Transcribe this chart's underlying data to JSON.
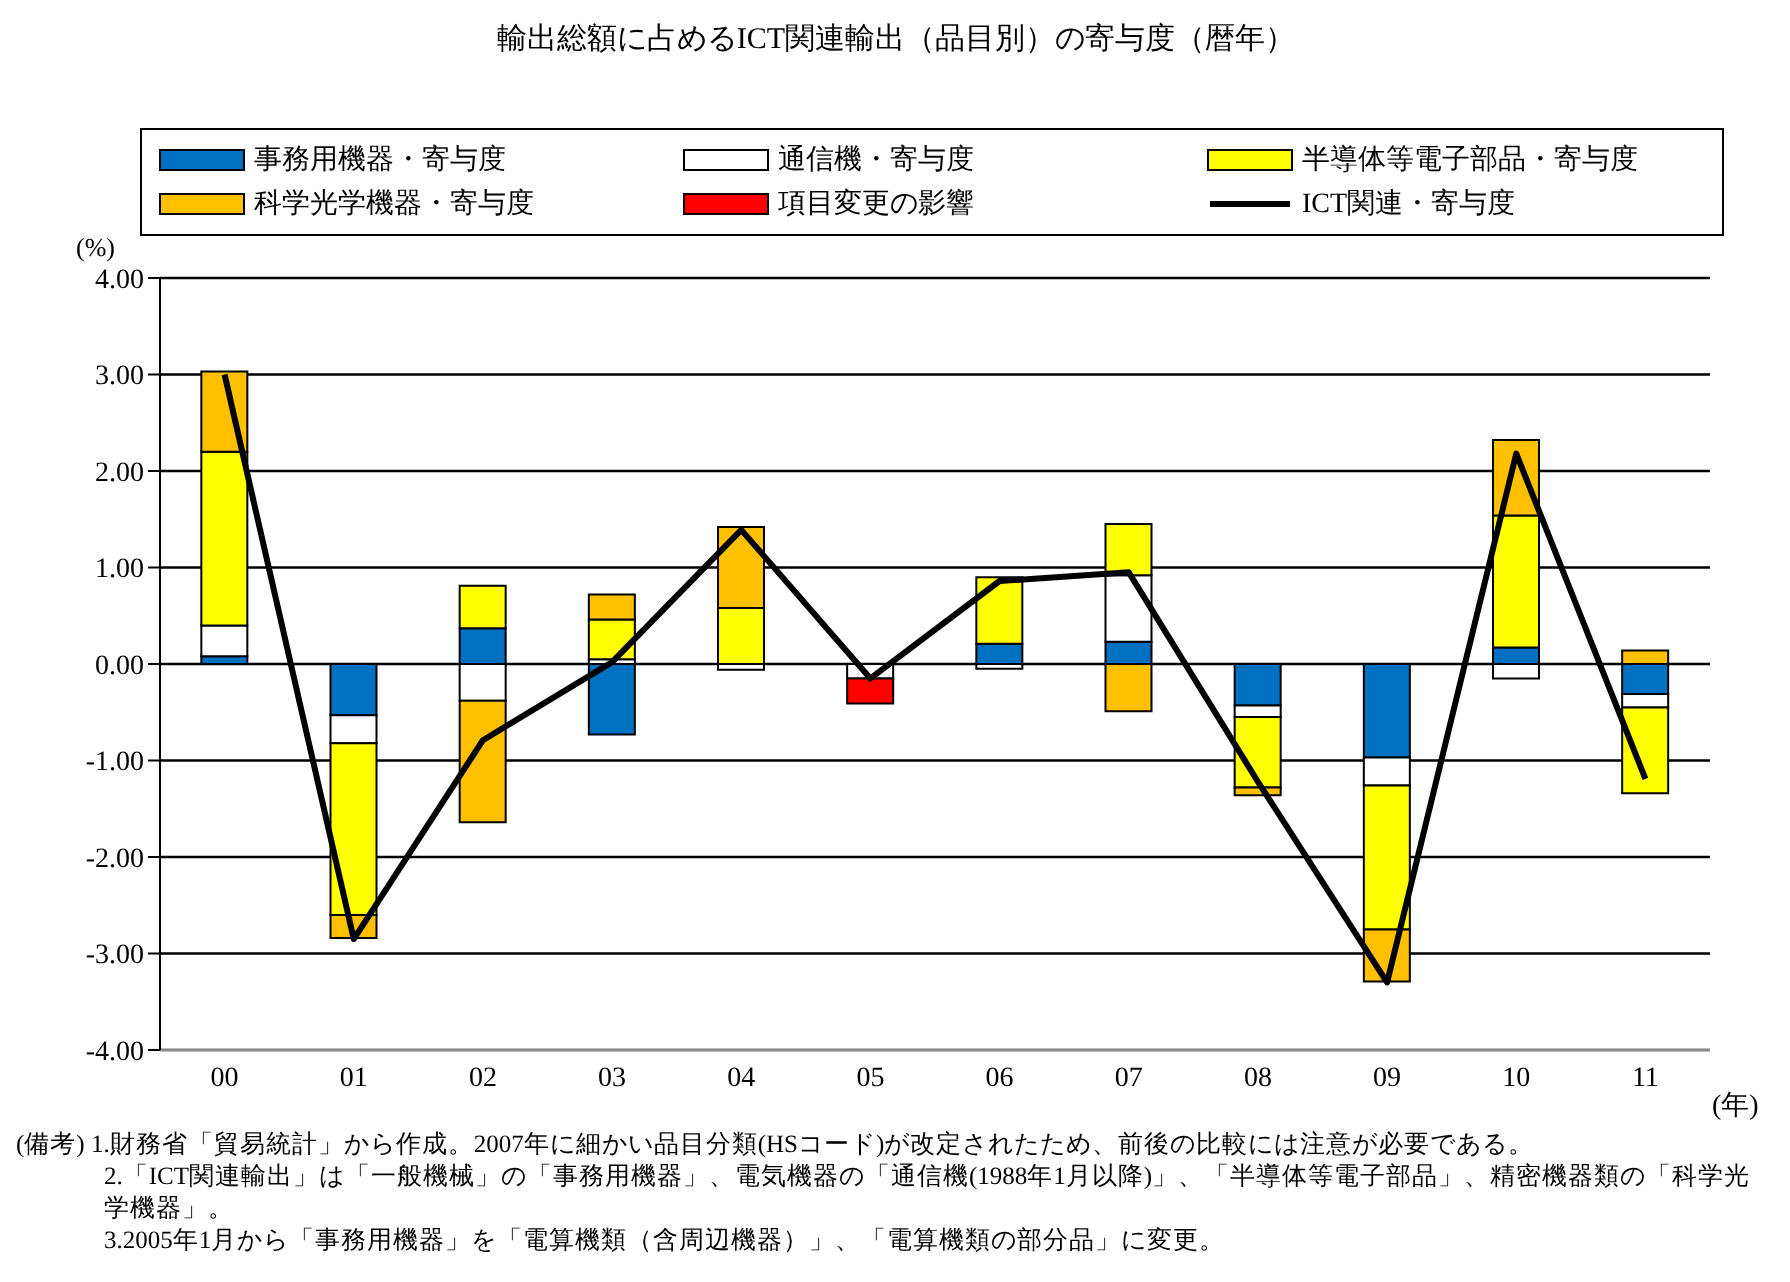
{
  "chart_data": {
    "type": "bar",
    "stacked": true,
    "title": "輸出総額に占めるICT関連輸出（品目別）の寄与度（暦年）",
    "ylabel": "(%)",
    "xlabel": "(年)",
    "categories": [
      "00",
      "01",
      "02",
      "03",
      "04",
      "05",
      "06",
      "07",
      "08",
      "09",
      "10",
      "11"
    ],
    "series": [
      {
        "name": "事務用機器・寄与度",
        "color": "#0070c0",
        "values": [
          0.08,
          -0.53,
          0.37,
          -0.73,
          null,
          null,
          0.21,
          0.23,
          -0.43,
          -0.97,
          0.17,
          -0.31
        ]
      },
      {
        "name": "通信機・寄与度",
        "color": "#ffffff",
        "values": [
          0.32,
          -0.29,
          -0.38,
          0.05,
          -0.06,
          -0.15,
          -0.05,
          0.69,
          -0.12,
          -0.29,
          -0.15,
          -0.14
        ]
      },
      {
        "name": "半導体等電子部品・寄与度",
        "color": "#ffff00",
        "values": [
          1.8,
          -1.78,
          0.44,
          0.41,
          0.58,
          null,
          0.69,
          0.53,
          -0.73,
          -1.49,
          1.37,
          -0.89
        ]
      },
      {
        "name": "科学光学機器・寄与度",
        "color": "#ffc000",
        "values": [
          0.83,
          -0.24,
          -1.26,
          0.26,
          0.84,
          null,
          null,
          -0.49,
          -0.08,
          -0.54,
          0.78,
          0.14
        ]
      },
      {
        "name": "項目変更の影響",
        "color": "#ff0000",
        "values": [
          null,
          null,
          null,
          null,
          null,
          -0.26,
          null,
          null,
          null,
          null,
          null,
          null
        ]
      },
      {
        "name": "ICT関連・寄与度",
        "type": "line",
        "color": "#000000",
        "values": [
          3.0,
          -2.85,
          -0.79,
          0.02,
          1.39,
          -0.15,
          0.86,
          0.95,
          -1.22,
          -3.3,
          2.18,
          -1.19
        ]
      }
    ],
    "ylim": [
      -4,
      4
    ],
    "yticks": [
      {
        "value": -4,
        "label": "-4.00"
      },
      {
        "value": -3,
        "label": "-3.00"
      },
      {
        "value": -2,
        "label": "-2.00"
      },
      {
        "value": -1,
        "label": "-1.00"
      },
      {
        "value": 0,
        "label": "0.00"
      },
      {
        "value": 1,
        "label": "1.00"
      },
      {
        "value": 2,
        "label": "2.00"
      },
      {
        "value": 3,
        "label": "3.00"
      },
      {
        "value": 4,
        "label": "4.00"
      }
    ],
    "grid": "y",
    "legend": "top",
    "marker": "none",
    "line_style": "solid",
    "annotations": [
      "(備考) 1.財務省「貿易統計」から作成。2007年に細かい品目分類(HSコード)が改定されたため、前後の比較には注意が必要である。",
      "2.「ICT関連輸出」は「一般機械」の「事務用機器」、電気機器の「通信機(1988年1月以降)」、「半導体等電子部品」、精密機器類の「科学光学機器」。",
      "3.2005年1月から「事務用機器」を「電算機類（含周辺機器）」、「電算機類の部分品」に変更。"
    ]
  }
}
